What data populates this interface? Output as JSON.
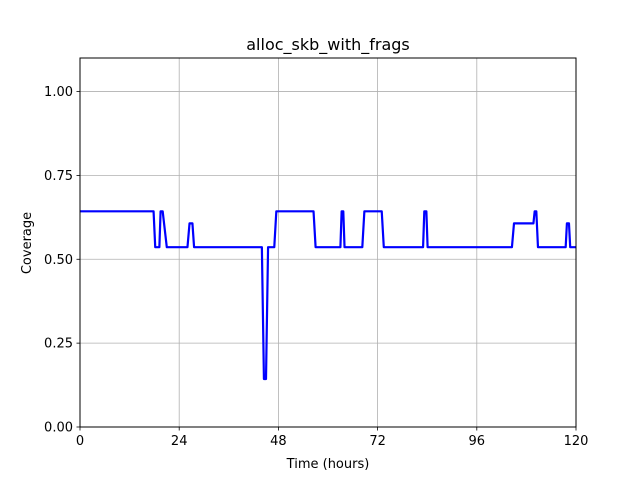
{
  "chart_data": {
    "type": "line",
    "title": "alloc_skb_with_frags",
    "xlabel": "Time (hours)",
    "ylabel": "Coverage",
    "xlim": [
      0,
      120
    ],
    "ylim": [
      0,
      1.1
    ],
    "xticks": [
      0,
      24,
      48,
      72,
      96,
      120
    ],
    "xtick_labels": [
      "0",
      "24",
      "48",
      "72",
      "96",
      "120"
    ],
    "yticks": [
      0,
      0.25,
      0.5,
      0.75,
      1.0
    ],
    "ytick_labels": [
      "0.00",
      "0.25",
      "0.50",
      "0.75",
      "1.00"
    ],
    "grid": true,
    "series": [
      {
        "color": "#0000ff",
        "x": [
          0,
          17.8,
          18.2,
          19.2,
          19.5,
          20.0,
          21.0,
          26.0,
          26.5,
          27.2,
          27.6,
          44.0,
          44.5,
          45.0,
          45.5,
          47.0,
          47.5,
          56.5,
          57.0,
          63.0,
          63.3,
          63.7,
          64.0,
          68.3,
          68.8,
          73.0,
          73.5,
          83.0,
          83.3,
          83.8,
          84.1,
          104.5,
          105.0,
          109.7,
          110.0,
          110.4,
          110.8,
          117.5,
          117.8,
          118.3,
          118.6,
          120
        ],
        "y": [
          0.643,
          0.643,
          0.536,
          0.536,
          0.643,
          0.643,
          0.536,
          0.536,
          0.607,
          0.607,
          0.536,
          0.536,
          0.143,
          0.143,
          0.536,
          0.536,
          0.643,
          0.643,
          0.536,
          0.536,
          0.643,
          0.643,
          0.536,
          0.536,
          0.643,
          0.643,
          0.536,
          0.536,
          0.643,
          0.643,
          0.536,
          0.536,
          0.607,
          0.607,
          0.643,
          0.643,
          0.536,
          0.536,
          0.607,
          0.607,
          0.536,
          0.536
        ]
      }
    ]
  }
}
